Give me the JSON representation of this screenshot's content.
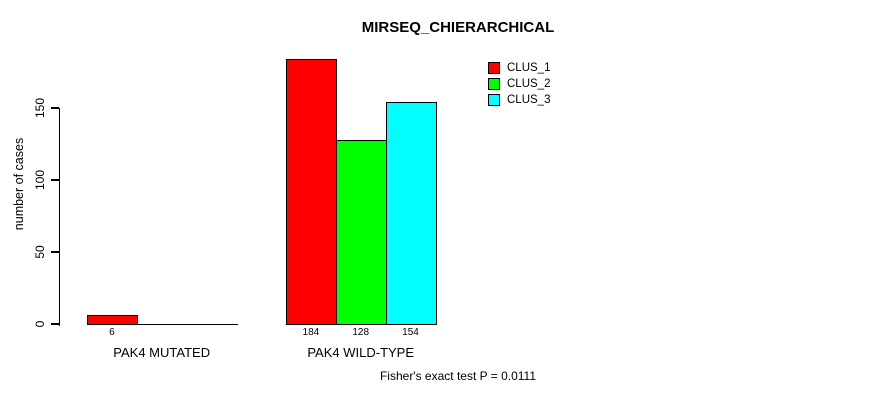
{
  "page": {
    "background_color": "#ffffff",
    "text_color": "#000000"
  },
  "chart_data": {
    "type": "bar",
    "title": "MIRSEQ_CHIERARCHICAL",
    "xlabel": "",
    "ylabel": "number of cases",
    "ylim": [
      0,
      150
    ],
    "y_ticks": [
      0,
      50,
      100,
      150
    ],
    "grid": false,
    "legend_position": "top-right",
    "categories": [
      "PAK4 MUTATED",
      "PAK4 WILD-TYPE"
    ],
    "series": [
      {
        "name": "CLUS_1",
        "color": "#ff0000",
        "values": [
          6,
          184
        ]
      },
      {
        "name": "CLUS_2",
        "color": "#00ff00",
        "values": [
          0,
          128
        ]
      },
      {
        "name": "CLUS_3",
        "color": "#00ffff",
        "values": [
          0,
          154
        ]
      }
    ],
    "visible_bar_value_labels": [
      "6",
      "184",
      "128",
      "154"
    ],
    "annotation": "Fisher's exact test P = 0.0111"
  }
}
